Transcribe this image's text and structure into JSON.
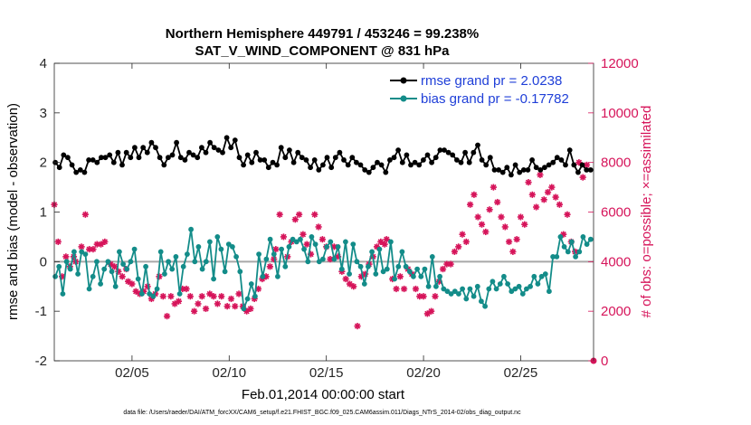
{
  "chart_data": {
    "type": "line",
    "title": "Northern Hemisphere 449791 / 453246 = 99.238%",
    "subtitle": "SAT_V_WIND_COMPONENT @ 831 hPa",
    "xlabel": "Feb.01,2014 00:00:00 start",
    "ylabel_left": "rmse and bias (model - observation)",
    "ylabel_right": "# of obs: o=possible; ×=assimilated",
    "footnote": "data file: /Users/raeder/DAI/ATM_forcXX/CAM6_setup/f.e21.FHIST_BGC.f09_025.CAM6assim.011/Diags_NTrS_2014-02/obs_diag_output.nc",
    "xlim": [
      1,
      28.75
    ],
    "ylim_left": [
      -2,
      4
    ],
    "ylim_right": [
      0,
      12000
    ],
    "x_ticks": [
      5,
      10,
      15,
      20,
      25
    ],
    "x_tick_labels": [
      "02/05",
      "02/10",
      "02/15",
      "02/20",
      "02/25"
    ],
    "y_ticks_left": [
      -2,
      -1,
      0,
      1,
      2,
      3,
      4
    ],
    "y_tick_labels_left": [
      "-2",
      "-1",
      "0",
      "1",
      "2",
      "3",
      "4"
    ],
    "y_ticks_right": [
      0,
      2000,
      4000,
      6000,
      8000,
      10000,
      12000
    ],
    "y_tick_labels_right": [
      "0",
      "2000",
      "4000",
      "6000",
      "8000",
      "10000",
      "12000"
    ],
    "colors": {
      "rmse": "#000000",
      "bias": "#138c89",
      "obs": "#d6145a",
      "zero": "#a8a8a8",
      "legend_text": "#1f3fd8"
    },
    "legend": [
      "rmse grand pr = 2.0238",
      "bias grand pr = -0.17782"
    ],
    "series": [
      {
        "name": "rmse grand pr = 2.0238",
        "axis": "left",
        "values": [
          2.0,
          1.9,
          2.15,
          2.1,
          1.95,
          1.8,
          1.85,
          1.8,
          2.05,
          2.05,
          2.0,
          2.1,
          2.1,
          2.15,
          2.0,
          2.2,
          1.95,
          2.2,
          2.1,
          2.3,
          2.1,
          2.3,
          2.2,
          2.4,
          2.3,
          2.1,
          1.95,
          2.1,
          2.15,
          2.4,
          2.1,
          2.05,
          2.2,
          2.15,
          2.1,
          2.3,
          2.2,
          2.4,
          2.3,
          2.25,
          2.2,
          2.5,
          2.3,
          2.45,
          2.1,
          1.95,
          2.15,
          2.0,
          2.2,
          2.05,
          2.05,
          1.9,
          2.0,
          1.95,
          2.3,
          2.1,
          2.25,
          2.0,
          2.2,
          2.1,
          2.05,
          1.9,
          2.05,
          1.85,
          1.95,
          2.1,
          1.9,
          2.1,
          2.2,
          2.05,
          1.95,
          2.1,
          2.0,
          1.95,
          1.85,
          1.8,
          1.9,
          2.0,
          1.95,
          1.8,
          2.05,
          2.1,
          2.25,
          2.0,
          2.15,
          1.95,
          2.0,
          1.95,
          2.05,
          2.15,
          2.0,
          2.1,
          2.25,
          2.25,
          2.2,
          2.15,
          2.05,
          2.0,
          2.2,
          2.0,
          2.2,
          2.35,
          2.05,
          1.95,
          2.1,
          1.85,
          1.85,
          1.8,
          1.9,
          1.75,
          1.95,
          1.8,
          1.85,
          1.85,
          2.05,
          1.9,
          1.85,
          1.9,
          1.95,
          2.0,
          2.1,
          2.05,
          1.95,
          2.25,
          1.95,
          1.8,
          1.95,
          1.85,
          1.85
        ]
      },
      {
        "name": "bias grand pr = -0.17782",
        "axis": "left",
        "values": [
          -0.3,
          -0.1,
          -0.65,
          0.0,
          -0.15,
          0.2,
          -0.25,
          0.2,
          0.15,
          -0.55,
          -0.3,
          0.0,
          -0.45,
          -0.15,
          0.0,
          -0.2,
          -0.5,
          0.2,
          -0.05,
          -0.15,
          0.0,
          0.25,
          -0.35,
          -0.65,
          -0.1,
          -0.65,
          -0.7,
          -0.55,
          0.2,
          -0.25,
          0.0,
          -0.15,
          0.1,
          -0.65,
          -0.1,
          0.15,
          0.65,
          0.0,
          0.3,
          -0.15,
          0.0,
          0.4,
          -0.35,
          0.5,
          0.25,
          -0.2,
          0.35,
          0.3,
          0.1,
          -0.2,
          -0.95,
          -0.75,
          -0.45,
          -0.7,
          0.15,
          -0.3,
          0.05,
          0.45,
          0.15,
          -0.3,
          0.25,
          -0.1,
          0.3,
          0.45,
          0.4,
          0.45,
          0.25,
          0.0,
          0.5,
          0.35,
          0.0,
          0.05,
          0.3,
          0.4,
          0.05,
          0.3,
          -0.15,
          0.4,
          -0.25,
          0.35,
          0.0,
          -0.1,
          -0.45,
          -0.1,
          0.2,
          -0.25,
          0.25,
          -0.2,
          -0.15,
          0.4,
          -0.35,
          -0.1,
          0.2,
          -0.1,
          -0.2,
          -0.3,
          -0.15,
          -0.3,
          -0.15,
          -0.5,
          0.1,
          -0.5,
          -0.3,
          -0.55,
          -0.6,
          -0.65,
          -0.6,
          -0.65,
          -0.55,
          -0.75,
          -0.55,
          -0.7,
          -0.5,
          -0.8,
          -0.9,
          -0.55,
          -0.4,
          -0.55,
          -0.45,
          -0.3,
          -0.45,
          -0.6,
          -0.55,
          -0.5,
          -0.65,
          -0.55,
          -0.5,
          -0.3,
          -0.45,
          -0.3,
          -0.25,
          -0.6,
          0.1,
          0.1,
          0.5,
          0.3,
          0.2,
          0.4,
          0.1,
          0.2,
          0.5,
          0.35,
          0.45
        ]
      },
      {
        "name": "# of obs assimilated",
        "axis": "right",
        "marker": "asterisk",
        "points": [
          [
            1.0,
            6300
          ],
          [
            1.2,
            4800
          ],
          [
            1.4,
            3400
          ],
          [
            1.6,
            4200
          ],
          [
            1.8,
            3800
          ],
          [
            2.0,
            4200
          ],
          [
            2.1,
            4000
          ],
          [
            2.4,
            4600
          ],
          [
            2.6,
            5900
          ],
          [
            2.8,
            4500
          ],
          [
            3.0,
            4500
          ],
          [
            3.2,
            4700
          ],
          [
            3.4,
            4700
          ],
          [
            3.6,
            4800
          ],
          [
            3.9,
            3900
          ],
          [
            4.1,
            3800
          ],
          [
            4.3,
            3600
          ],
          [
            4.5,
            3400
          ],
          [
            4.7,
            3700
          ],
          [
            4.8,
            3200
          ],
          [
            5.0,
            3100
          ],
          [
            5.2,
            2800
          ],
          [
            5.4,
            2700
          ],
          [
            5.6,
            2800
          ],
          [
            5.8,
            3000
          ],
          [
            6.0,
            2500
          ],
          [
            6.2,
            2700
          ],
          [
            6.4,
            3400
          ],
          [
            6.6,
            2600
          ],
          [
            6.8,
            1800
          ],
          [
            7.0,
            2600
          ],
          [
            7.2,
            2300
          ],
          [
            7.4,
            2400
          ],
          [
            7.6,
            2900
          ],
          [
            7.8,
            2900
          ],
          [
            8.0,
            2600
          ],
          [
            8.2,
            2000
          ],
          [
            8.4,
            2300
          ],
          [
            8.6,
            2600
          ],
          [
            8.8,
            2100
          ],
          [
            9.0,
            2700
          ],
          [
            9.2,
            2600
          ],
          [
            9.4,
            2300
          ],
          [
            9.6,
            2600
          ],
          [
            9.9,
            2200
          ],
          [
            10.1,
            2500
          ],
          [
            10.3,
            2200
          ],
          [
            10.5,
            2700
          ],
          [
            10.7,
            2200
          ],
          [
            10.9,
            2000
          ],
          [
            11.1,
            2100
          ],
          [
            11.3,
            2500
          ],
          [
            11.5,
            2900
          ],
          [
            11.7,
            3300
          ],
          [
            11.9,
            3400
          ],
          [
            12.1,
            3800
          ],
          [
            12.3,
            4100
          ],
          [
            12.4,
            4500
          ],
          [
            12.6,
            5900
          ],
          [
            12.8,
            5000
          ],
          [
            13.0,
            4200
          ],
          [
            13.2,
            4800
          ],
          [
            13.4,
            5700
          ],
          [
            13.6,
            5900
          ],
          [
            13.8,
            5100
          ],
          [
            14.0,
            4700
          ],
          [
            14.2,
            4300
          ],
          [
            14.4,
            5900
          ],
          [
            14.6,
            5400
          ],
          [
            14.8,
            4900
          ],
          [
            15.0,
            4600
          ],
          [
            15.2,
            4100
          ],
          [
            15.4,
            4600
          ],
          [
            15.6,
            4200
          ],
          [
            15.8,
            3600
          ],
          [
            16.0,
            3300
          ],
          [
            16.2,
            3100
          ],
          [
            16.4,
            3000
          ],
          [
            16.6,
            1400
          ],
          [
            16.8,
            3400
          ],
          [
            17.0,
            3500
          ],
          [
            17.2,
            3900
          ],
          [
            17.4,
            4200
          ],
          [
            17.6,
            4600
          ],
          [
            17.8,
            4800
          ],
          [
            18.0,
            4700
          ],
          [
            18.1,
            4900
          ],
          [
            18.4,
            3300
          ],
          [
            18.6,
            2900
          ],
          [
            18.8,
            3400
          ],
          [
            19.0,
            2900
          ],
          [
            19.2,
            3700
          ],
          [
            19.4,
            3500
          ],
          [
            19.6,
            2900
          ],
          [
            19.8,
            2600
          ],
          [
            20.0,
            2600
          ],
          [
            20.2,
            1900
          ],
          [
            20.4,
            2000
          ],
          [
            20.6,
            2600
          ],
          [
            20.8,
            3200
          ],
          [
            21.0,
            3700
          ],
          [
            21.2,
            3900
          ],
          [
            21.4,
            3900
          ],
          [
            21.6,
            4400
          ],
          [
            21.8,
            4600
          ],
          [
            22.0,
            5100
          ],
          [
            22.2,
            4800
          ],
          [
            22.4,
            6300
          ],
          [
            22.6,
            6700
          ],
          [
            22.8,
            5800
          ],
          [
            23.0,
            5500
          ],
          [
            23.2,
            5200
          ],
          [
            23.4,
            6100
          ],
          [
            23.6,
            7000
          ],
          [
            23.8,
            6400
          ],
          [
            24.0,
            5800
          ],
          [
            24.2,
            5400
          ],
          [
            24.4,
            4800
          ],
          [
            24.6,
            4400
          ],
          [
            24.8,
            4900
          ],
          [
            25.0,
            5800
          ],
          [
            25.2,
            5500
          ],
          [
            25.4,
            7200
          ],
          [
            25.6,
            6700
          ],
          [
            25.8,
            6200
          ],
          [
            26.0,
            7500
          ],
          [
            26.2,
            6500
          ],
          [
            26.4,
            6800
          ],
          [
            26.6,
            7000
          ],
          [
            26.8,
            6600
          ],
          [
            27.0,
            6300
          ],
          [
            27.2,
            5100
          ],
          [
            27.4,
            5900
          ],
          [
            27.6,
            4800
          ],
          [
            27.8,
            4400
          ],
          [
            28.0,
            8000
          ],
          [
            28.2,
            7400
          ],
          [
            28.4,
            7900
          ]
        ]
      },
      {
        "name": "# of obs possible",
        "axis": "right",
        "marker": "circle",
        "points": [
          [
            28.75,
            0
          ]
        ]
      }
    ]
  }
}
